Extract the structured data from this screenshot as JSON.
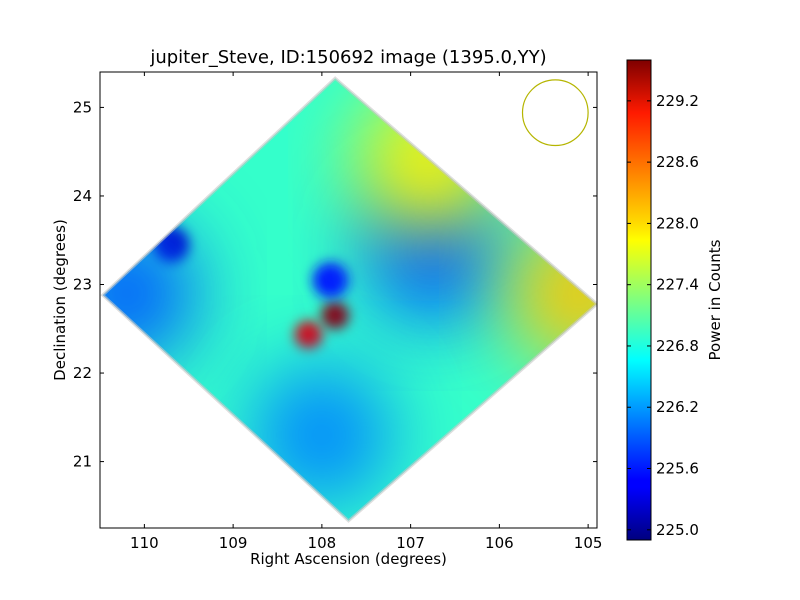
{
  "chart_data": {
    "type": "heatmap",
    "title": "jupiter_Steve, ID:150692 image (1395.0,YY)",
    "xlabel": "Right Ascension (degrees)",
    "ylabel": "Declination (degrees)",
    "xlim": [
      110.5,
      104.9
    ],
    "ylim": [
      20.25,
      25.4
    ],
    "x_ticks": [
      110,
      109,
      108,
      107,
      106,
      105
    ],
    "y_ticks": [
      21,
      22,
      23,
      24,
      25
    ],
    "colorbar": {
      "label": "Power in Counts",
      "range": [
        224.9,
        229.6
      ],
      "ticks": [
        "225.0",
        "225.6",
        "226.2",
        "226.8",
        "227.4",
        "228.0",
        "228.6",
        "229.2"
      ],
      "colormap": "jet"
    },
    "grid": false,
    "footprint_corners_deg": [
      {
        "ra": 107.85,
        "dec": 25.33
      },
      {
        "ra": 104.9,
        "dec": 22.78
      },
      {
        "ra": 107.7,
        "dec": 20.33
      },
      {
        "ra": 110.47,
        "dec": 22.88
      }
    ],
    "features": [
      {
        "ra": 107.85,
        "dec": 22.65,
        "value": 229.5
      },
      {
        "ra": 108.15,
        "dec": 22.43,
        "value": 229.1
      },
      {
        "ra": 107.9,
        "dec": 23.05,
        "value": 225.6
      },
      {
        "ra": 106.75,
        "dec": 23.38,
        "value": 225.9
      },
      {
        "ra": 109.7,
        "dec": 23.45,
        "value": 225.2
      },
      {
        "ra": 110.2,
        "dec": 22.9,
        "value": 225.9
      },
      {
        "ra": 108.0,
        "dec": 21.3,
        "value": 226.1
      },
      {
        "ra": 105.1,
        "dec": 22.9,
        "value": 228.1
      },
      {
        "ra": 106.8,
        "dec": 24.4,
        "value": 227.9
      }
    ],
    "beam_circle": {
      "ra": 105.37,
      "dec": 24.94,
      "radius_deg": 0.37,
      "color": "#b5b500"
    }
  }
}
